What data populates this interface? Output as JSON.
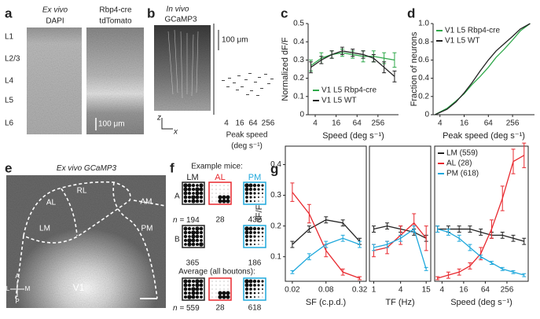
{
  "figure": {
    "a": {
      "label": "a",
      "left_title": [
        "Ex vivo",
        "DAPI"
      ],
      "right_title": [
        "Rbp4-cre",
        "tdTomato"
      ],
      "layers": [
        "L1",
        "L2/3",
        "L4",
        "L5",
        "L6"
      ],
      "scale_bar": "100 μm"
    },
    "b": {
      "label": "b",
      "title": [
        "In vivo",
        "GCaMP3"
      ],
      "axes": [
        "z",
        "x"
      ],
      "scale_bar": "100 μm",
      "xticks": [
        4,
        16,
        64,
        256
      ],
      "x_label": [
        "Peak speed",
        "(deg s⁻¹)"
      ]
    },
    "e": {
      "label": "e",
      "title": "Ex vivo GCaMP3",
      "areas": [
        "RL",
        "AL",
        "AM",
        "LM",
        "PM",
        "V1"
      ],
      "compass": [
        "A",
        "L",
        "M",
        "P"
      ]
    },
    "f": {
      "label": "f",
      "example": "Example mice:",
      "areas": [
        "LM",
        "AL",
        "PM"
      ],
      "rows": [
        "A",
        "B"
      ],
      "n_prefix": "n =",
      "counts": [
        [
          194,
          28,
          432
        ],
        [
          365,
          null,
          186
        ]
      ],
      "average": "Average (all boutons):",
      "average_counts": [
        559,
        28,
        618
      ]
    }
  },
  "chart_data": [
    {
      "type": "line",
      "panel": "c",
      "x_label": "Speed (deg s⁻¹)",
      "y_label": "Normalized dF/F",
      "xscale": "log",
      "x": [
        3,
        6,
        12,
        24,
        48,
        96,
        192,
        384,
        768
      ],
      "xlim": [
        2.5,
        1000
      ],
      "xticks": [
        4,
        16,
        64,
        256
      ],
      "ylim": [
        0,
        0.5
      ],
      "yticks": [
        0,
        0.1,
        0.2,
        0.3,
        0.4,
        0.5
      ],
      "legend": "lower center",
      "series": [
        {
          "name": "V1 L5 Rbp4-cre",
          "color": "#2fa84a",
          "values": [
            0.27,
            0.31,
            0.33,
            0.34,
            0.33,
            0.32,
            0.32,
            0.31,
            0.3
          ],
          "errors": [
            0.03,
            0.03,
            0.02,
            0.02,
            0.02,
            0.03,
            0.03,
            0.03,
            0.04
          ]
        },
        {
          "name": "V1 L5 WT",
          "color": "#222222",
          "values": [
            0.26,
            0.3,
            0.33,
            0.35,
            0.34,
            0.33,
            0.31,
            0.26,
            0.21
          ],
          "errors": [
            0.03,
            0.02,
            0.02,
            0.02,
            0.02,
            0.02,
            0.02,
            0.03,
            0.03
          ]
        }
      ]
    },
    {
      "type": "line",
      "panel": "d",
      "x_label": "Peak speed (deg s⁻¹)",
      "y_label": "Fraction of neurons",
      "xscale": "log",
      "x": [
        3,
        6,
        10,
        16,
        25,
        40,
        64,
        100,
        160,
        256,
        400,
        700
      ],
      "xlim": [
        2.7,
        900
      ],
      "xticks": [
        4,
        16,
        64,
        256
      ],
      "ylim": [
        0,
        1
      ],
      "yticks": [
        0,
        0.2,
        0.4,
        0.6,
        0.8,
        {
          "value": 1,
          "label": "1.0"
        }
      ],
      "legend": "upper left",
      "series": [
        {
          "name": "V1 L5 Rbp4-cre",
          "color": "#2fa84a",
          "values": [
            0,
            0.07,
            0.15,
            0.23,
            0.33,
            0.42,
            0.52,
            0.63,
            0.72,
            0.82,
            0.92,
            1
          ]
        },
        {
          "name": "V1 L5 WT",
          "color": "#222222",
          "values": [
            0,
            0.06,
            0.14,
            0.24,
            0.35,
            0.48,
            0.6,
            0.7,
            0.78,
            0.86,
            0.94,
            1
          ]
        }
      ]
    },
    {
      "type": "line",
      "panel": "g",
      "x_label": "SF (c.p.d.)",
      "y_label": "dF/F",
      "xscale": "log",
      "frame": true,
      "x": [
        0.02,
        0.04,
        0.08,
        0.16,
        0.32
      ],
      "xlim": [
        0.015,
        0.42
      ],
      "xticks": [
        0.02,
        0.08,
        0.32
      ],
      "ylim": [
        0.02,
        0.46
      ],
      "yticks": [
        0.1,
        0.2,
        0.3,
        0.4
      ],
      "series": [
        {
          "color": "#222222",
          "values": [
            0.14,
            0.19,
            0.22,
            0.21,
            0.15
          ],
          "errors": [
            0.01,
            0.01,
            0.01,
            0.01,
            0.01
          ]
        },
        {
          "color": "#e8292f",
          "values": [
            0.31,
            0.24,
            0.12,
            0.05,
            0.03
          ],
          "errors": [
            0.03,
            0.03,
            0.02,
            0.01,
            0.005
          ]
        },
        {
          "color": "#1fa8dc",
          "values": [
            0.05,
            0.1,
            0.14,
            0.16,
            0.14
          ],
          "errors": [
            0.005,
            0.01,
            0.01,
            0.01,
            0.01
          ]
        }
      ]
    },
    {
      "type": "line",
      "panel_part": "TF",
      "x_label": "TF (Hz)",
      "xscale": "log",
      "frame": true,
      "x": [
        1,
        2,
        4,
        8,
        15
      ],
      "xlim": [
        0.8,
        19
      ],
      "xticks": [
        1,
        4,
        15
      ],
      "ylim": [
        0.02,
        0.46
      ],
      "series": [
        {
          "color": "#222222",
          "values": [
            0.19,
            0.2,
            0.19,
            0.18,
            0.16
          ],
          "errors": [
            0.01,
            0.01,
            0.01,
            0.01,
            0.01
          ]
        },
        {
          "color": "#e8292f",
          "values": [
            0.12,
            0.13,
            0.17,
            0.21,
            0.16
          ],
          "errors": [
            0.02,
            0.02,
            0.03,
            0.03,
            0.04
          ]
        },
        {
          "color": "#1fa8dc",
          "values": [
            0.13,
            0.14,
            0.16,
            0.19,
            0.06
          ],
          "errors": [
            0.01,
            0.01,
            0.01,
            0.01,
            0.005
          ]
        }
      ]
    },
    {
      "type": "line",
      "panel_part": "Speed",
      "x_label": "Speed (deg s⁻¹)",
      "xscale": "log",
      "frame": true,
      "x": [
        3,
        6,
        12,
        24,
        48,
        96,
        192,
        384,
        768
      ],
      "xlim": [
        2.5,
        1000
      ],
      "xticks": [
        4,
        16,
        64,
        256
      ],
      "ylim": [
        0.02,
        0.46
      ],
      "legend": "upper left",
      "series": [
        {
          "name": "LM (559)",
          "color": "#222222",
          "values": [
            0.19,
            0.19,
            0.19,
            0.19,
            0.18,
            0.17,
            0.17,
            0.16,
            0.15
          ],
          "errors": [
            0.01,
            0.01,
            0.01,
            0.01,
            0.01,
            0.01,
            0.01,
            0.01,
            0.01
          ]
        },
        {
          "name": "AL (28)",
          "color": "#e8292f",
          "values": [
            0.03,
            0.04,
            0.05,
            0.07,
            0.11,
            0.19,
            0.29,
            0.41,
            0.43
          ],
          "errors": [
            0.005,
            0.01,
            0.01,
            0.01,
            0.02,
            0.03,
            0.04,
            0.04,
            0.04
          ]
        },
        {
          "name": "PM (618)",
          "color": "#1fa8dc",
          "values": [
            0.19,
            0.18,
            0.16,
            0.13,
            0.1,
            0.08,
            0.06,
            0.05,
            0.04
          ],
          "errors": [
            0.01,
            0.01,
            0.01,
            0.01,
            0.005,
            0.005,
            0.005,
            0.005,
            0.005
          ]
        }
      ]
    }
  ]
}
